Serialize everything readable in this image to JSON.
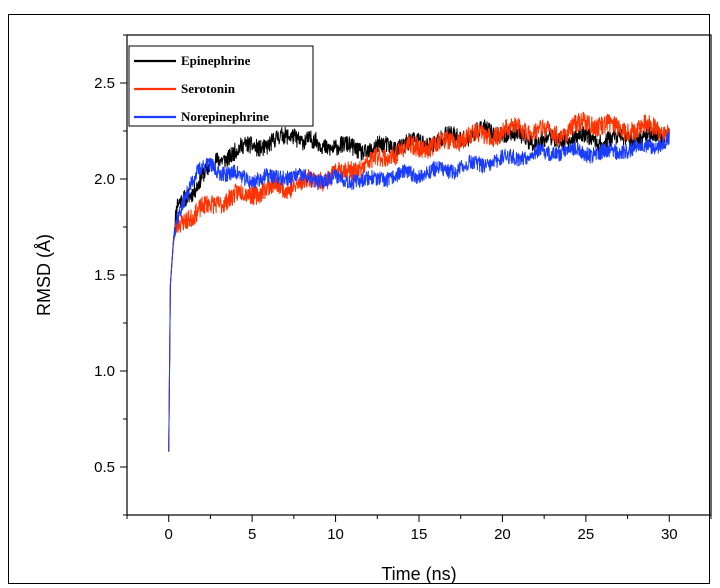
{
  "chart_data": {
    "type": "line",
    "title": "",
    "xlabel": "Time (ns)",
    "ylabel": "RMSD (Å)",
    "xlim": [
      -2.5,
      32.5
    ],
    "ylim": [
      0.25,
      2.75
    ],
    "x_ticks": [
      0,
      5,
      10,
      15,
      20,
      25,
      30
    ],
    "x_tick_labels": [
      "0",
      "5",
      "10",
      "15",
      "20",
      "25",
      "30"
    ],
    "y_ticks": [
      0.5,
      1.0,
      1.5,
      2.0,
      2.5
    ],
    "y_tick_labels": [
      "0.5",
      "1.0",
      "1.5",
      "2.0",
      "2.5"
    ],
    "legend_position": "top-left",
    "series": [
      {
        "name": "Epinephrine",
        "color": "#000000",
        "x": [
          0,
          0.1,
          0.3,
          0.5,
          1,
          1.5,
          2,
          2.5,
          3,
          3.5,
          4,
          5,
          6,
          7,
          7.5,
          8,
          9,
          10,
          11,
          12,
          13,
          14,
          15,
          16,
          17,
          18,
          19,
          20,
          21,
          22,
          23,
          24,
          25,
          26,
          27,
          28,
          29,
          30
        ],
        "y": [
          0.58,
          1.45,
          1.7,
          1.85,
          1.9,
          1.95,
          2.02,
          2.05,
          2.1,
          2.12,
          2.15,
          2.17,
          2.18,
          2.22,
          2.24,
          2.2,
          2.18,
          2.17,
          2.16,
          2.15,
          2.17,
          2.18,
          2.19,
          2.2,
          2.22,
          2.23,
          2.25,
          2.24,
          2.22,
          2.2,
          2.2,
          2.21,
          2.22,
          2.2,
          2.21,
          2.22,
          2.22,
          2.24
        ]
      },
      {
        "name": "Serotonin",
        "color": "#ff3300",
        "x": [
          0,
          0.1,
          0.3,
          0.5,
          1,
          1.5,
          2,
          2.5,
          3,
          3.5,
          4,
          5,
          6,
          7,
          8,
          9,
          10,
          11,
          12,
          13,
          14,
          15,
          16,
          17,
          18,
          19,
          20,
          21,
          22,
          23,
          24,
          25,
          26,
          27,
          28,
          29,
          30
        ],
        "y": [
          0.58,
          1.45,
          1.68,
          1.75,
          1.8,
          1.82,
          1.84,
          1.86,
          1.88,
          1.9,
          1.91,
          1.93,
          1.95,
          1.96,
          1.98,
          2.0,
          2.02,
          2.05,
          2.08,
          2.12,
          2.15,
          2.17,
          2.18,
          2.2,
          2.22,
          2.23,
          2.24,
          2.27,
          2.25,
          2.24,
          2.25,
          2.3,
          2.28,
          2.27,
          2.26,
          2.27,
          2.25
        ]
      },
      {
        "name": "Norepinephrine",
        "color": "#1a3cff",
        "x": [
          0,
          0.1,
          0.3,
          0.5,
          1,
          1.5,
          2,
          2.5,
          3,
          3.5,
          4,
          5,
          6,
          7,
          8,
          9,
          10,
          11,
          12,
          13,
          14,
          15,
          16,
          17,
          18,
          19,
          20,
          21,
          22,
          23,
          24,
          25,
          26,
          27,
          28,
          29,
          30
        ],
        "y": [
          0.58,
          1.45,
          1.7,
          1.8,
          1.92,
          2.0,
          2.05,
          2.08,
          2.05,
          2.02,
          2.02,
          2.0,
          2.0,
          2.02,
          2.0,
          2.0,
          2.0,
          2.0,
          1.99,
          2.01,
          2.02,
          2.03,
          2.04,
          2.05,
          2.07,
          2.08,
          2.1,
          2.12,
          2.13,
          2.14,
          2.15,
          2.14,
          2.13,
          2.15,
          2.16,
          2.18,
          2.2
        ]
      }
    ]
  }
}
